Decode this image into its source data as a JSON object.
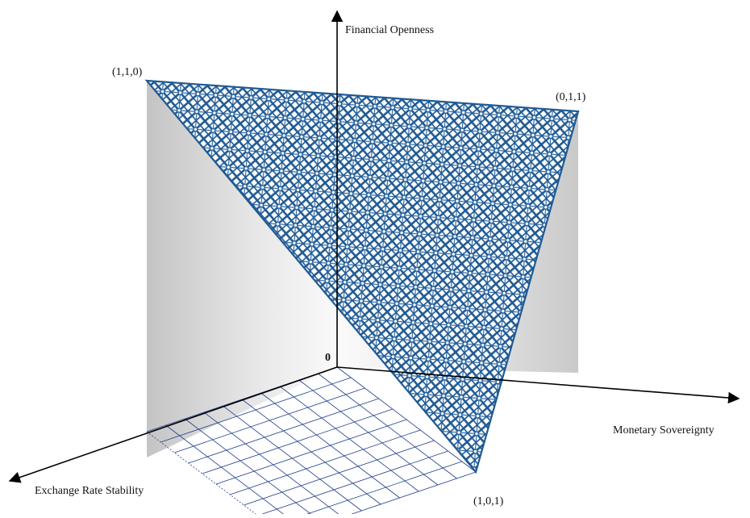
{
  "axes": {
    "vertical": "Financial Openness",
    "right": "Monetary Sovereignty",
    "left": "Exchange Rate Stability",
    "origin": "0"
  },
  "vertices": {
    "top_left": "(1,1,0)",
    "top_right": "(0,1,1)",
    "bottom": "(1,0,1)"
  },
  "colors": {
    "mesh": "#1f5a94",
    "mesh_light": "#2e6aa8",
    "grid": "#1f3d8a",
    "wall_dark": "#c8c8c8",
    "wall_light": "#f7f7f7",
    "axis": "#000000"
  }
}
